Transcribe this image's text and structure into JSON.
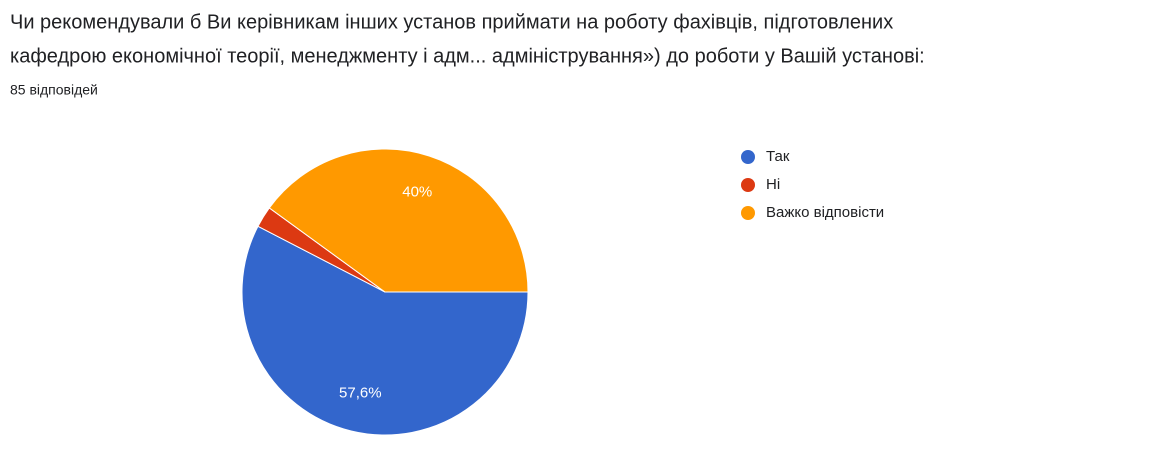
{
  "chart_data": {
    "type": "pie",
    "title_lines": [
      "Чи рекомендували б Ви керівникам інших установ приймати на роботу фахівців, підготовлених",
      "кафедрою економічної теорії, менеджменту і адм... адміністрування») до роботи у Вашій установі:"
    ],
    "subtitle": "85 відповідей",
    "categories": [
      "Так",
      "Ні",
      "Важко відповісти"
    ],
    "values": [
      57.6,
      2.4,
      40
    ],
    "value_labels": [
      "57,6%",
      null,
      "40%"
    ],
    "colors": [
      "#3366cc",
      "#dc3912",
      "#ff9900"
    ],
    "legend": "right"
  }
}
